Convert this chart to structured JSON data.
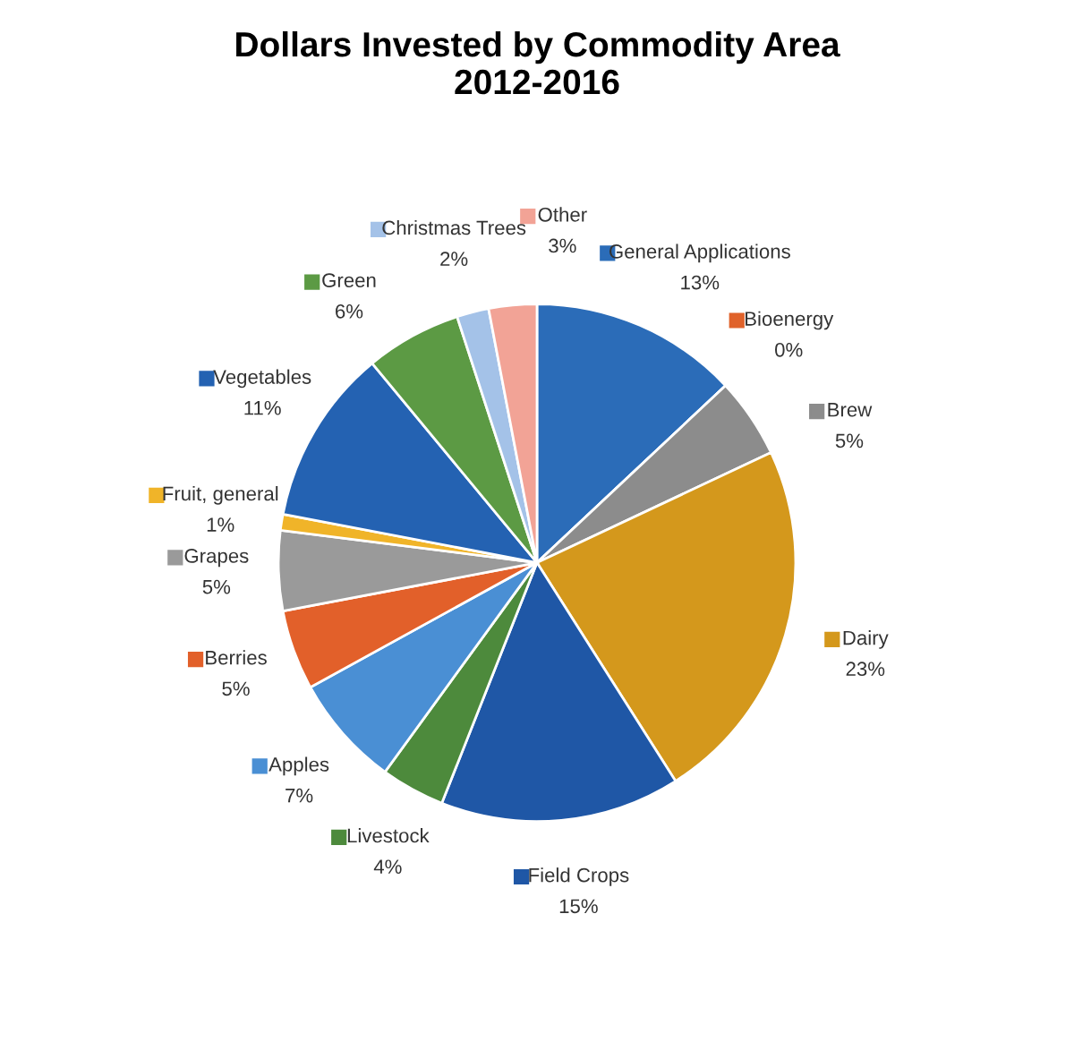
{
  "chart_data": {
    "type": "pie",
    "title": "Dollars Invested by Commodity Area\n2012-2016",
    "categories": [
      "General Applications",
      "Bioenergy",
      "Brew",
      "Dairy",
      "Field Crops",
      "Livestock",
      "Apples",
      "Berries",
      "Grapes",
      "Fruit, general",
      "Vegetables",
      "Green",
      "Christmas Trees",
      "Other"
    ],
    "values": [
      13,
      0,
      5,
      23,
      15,
      4,
      7,
      5,
      5,
      1,
      11,
      6,
      2,
      3
    ],
    "colors": [
      "#2b6cb8",
      "#e0622a",
      "#8c8c8c",
      "#d4981c",
      "#1f57a6",
      "#4d8a3c",
      "#4a8fd4",
      "#e2602a",
      "#9a9a9a",
      "#f0b429",
      "#2462b2",
      "#5c9a44",
      "#a4c2e8",
      "#f2a396"
    ],
    "value_labels": [
      "13%",
      "0%",
      "5%",
      "23%",
      "15%",
      "4%",
      "7%",
      "5%",
      "5%",
      "1%",
      "11%",
      "6%",
      "2%",
      "3%"
    ],
    "legend": "top left"
  }
}
